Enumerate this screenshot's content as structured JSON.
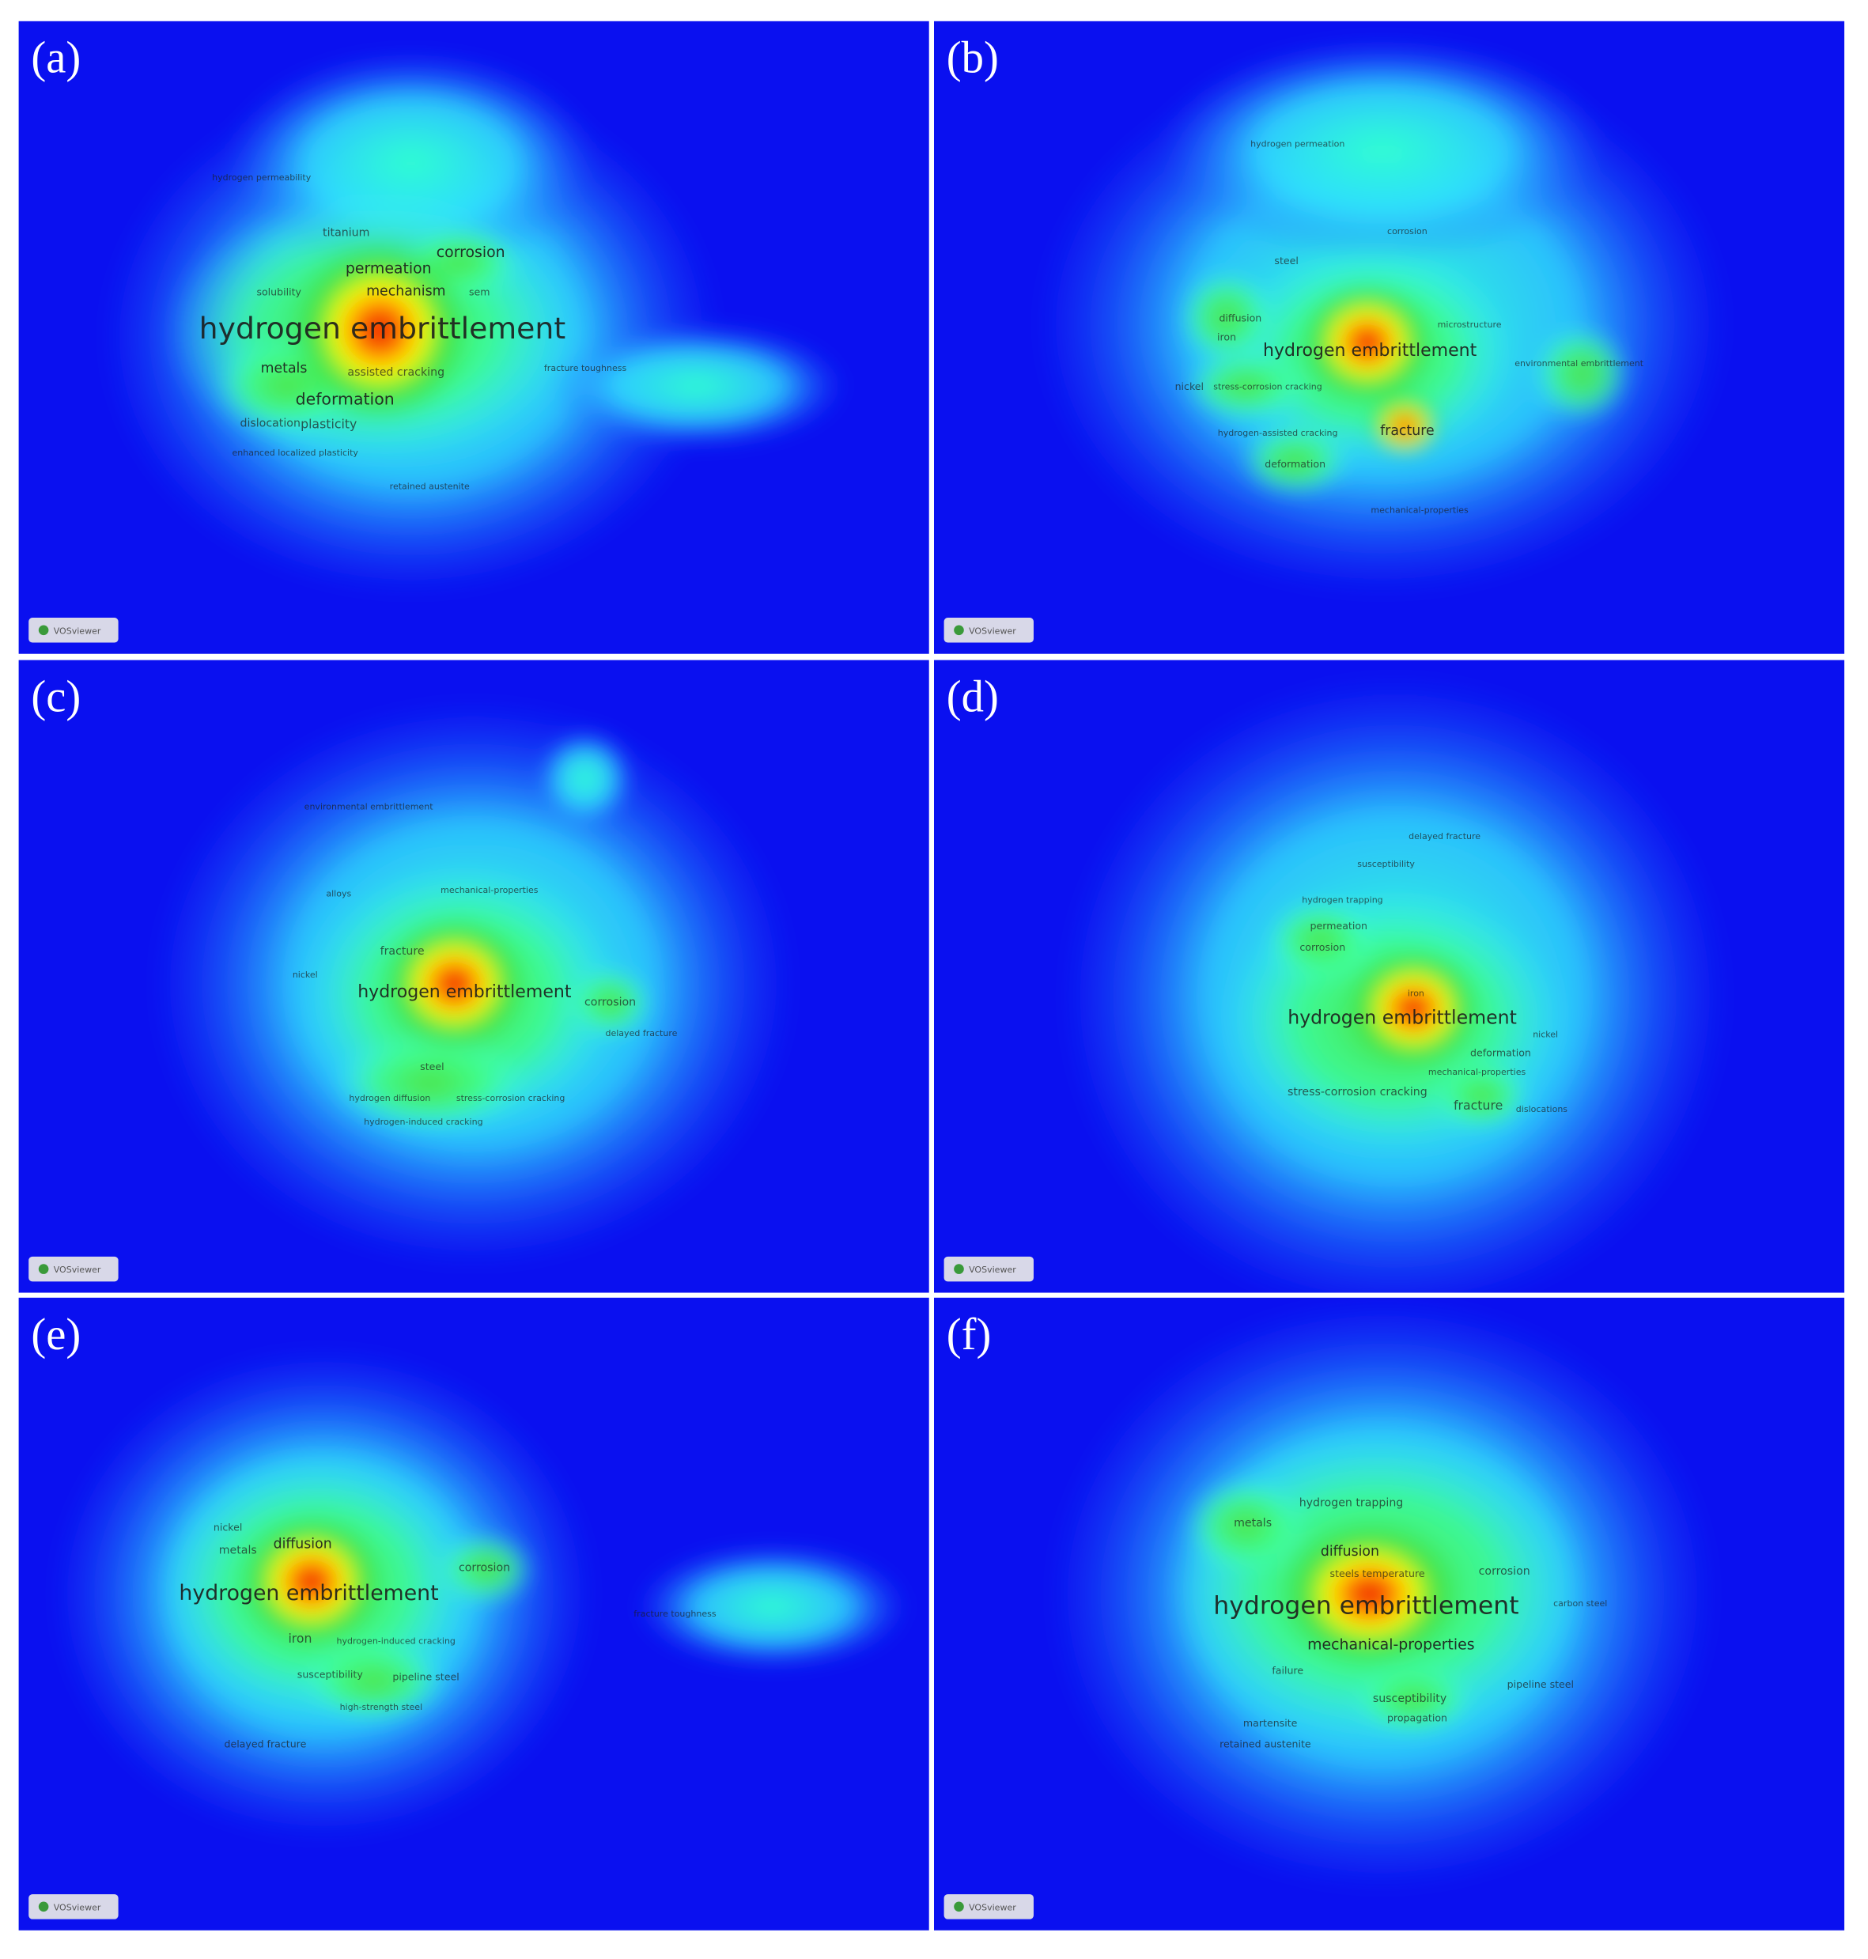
{
  "panels": [
    {
      "label": "(a)",
      "badge": "VOSviewer",
      "keywords": [
        "hydrogen embrittlement",
        "metals",
        "deformation",
        "corrosion",
        "permeation",
        "mechanism",
        "assisted cracking",
        "plasticity",
        "dislocation",
        "solubility",
        "titanium",
        "fracture toughness",
        "retained austenite",
        "enhanced localized plasticity",
        "hydrogen permeability",
        "sem"
      ]
    },
    {
      "label": "(b)",
      "badge": "VOSviewer",
      "keywords": [
        "hydrogen embrittlement",
        "fracture",
        "diffusion",
        "iron",
        "nickel",
        "deformation",
        "stress-corrosion cracking",
        "environmental embrittlement",
        "microstructure",
        "hydrogen permeation",
        "corrosion",
        "steel",
        "mechanical-properties",
        "hydrogen-assisted cracking"
      ]
    },
    {
      "label": "(c)",
      "badge": "VOSviewer",
      "keywords": [
        "hydrogen embrittlement",
        "fracture",
        "corrosion",
        "steel",
        "alloys",
        "mechanical-properties",
        "stress-corrosion cracking",
        "delayed fracture",
        "hydrogen-induced cracking",
        "hydrogen diffusion",
        "nickel",
        "environmental embrittlement"
      ]
    },
    {
      "label": "(d)",
      "badge": "VOSviewer",
      "keywords": [
        "hydrogen embrittlement",
        "fracture",
        "corrosion",
        "permeation",
        "stress-corrosion cracking",
        "deformation",
        "mechanical-properties",
        "nickel",
        "iron",
        "susceptibility",
        "dislocations",
        "delayed fracture",
        "hydrogen trapping"
      ]
    },
    {
      "label": "(e)",
      "badge": "VOSviewer",
      "keywords": [
        "hydrogen embrittlement",
        "diffusion",
        "iron",
        "metals",
        "corrosion",
        "susceptibility",
        "pipeline steel",
        "delayed fracture",
        "high-strength steel",
        "hydrogen-induced cracking",
        "fracture toughness",
        "nickel"
      ]
    },
    {
      "label": "(f)",
      "badge": "VOSviewer",
      "keywords": [
        "hydrogen embrittlement",
        "mechanical-properties",
        "diffusion",
        "corrosion",
        "hydrogen trapping",
        "metals",
        "susceptibility",
        "propagation",
        "failure",
        "steels temperature",
        "martensite",
        "retained austenite",
        "pipeline steel",
        "carbon steel"
      ]
    }
  ]
}
